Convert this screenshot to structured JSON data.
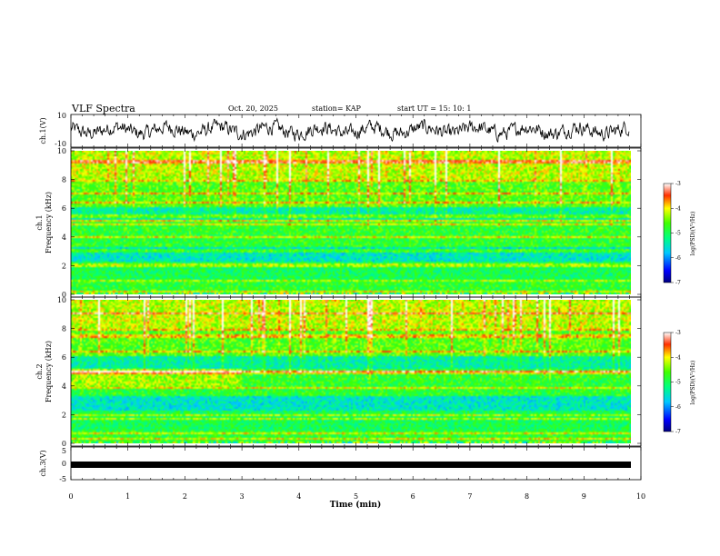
{
  "header": {
    "title": "VLF Spectra",
    "date": "Oct. 20, 2025",
    "station": "station= KAP",
    "start": "start  UT  =   15: 10: 1"
  },
  "chart_data": [
    {
      "type": "line",
      "name": "ch1-waveform",
      "ylabel": "ch.1(V)",
      "ylim": [
        -10,
        10
      ],
      "yticks": [
        "10",
        "-10"
      ],
      "xlim": [
        0,
        9.8
      ],
      "description_values": "noisy waveform oscillating roughly between -6 and 8 V around 0"
    },
    {
      "type": "heatmap",
      "name": "ch1-spectrogram",
      "ylabel_top": "ch.1",
      "ylabel": "Frequency  (kHz)",
      "ylim": [
        0,
        10
      ],
      "yticks": [
        "0",
        "2",
        "4",
        "6",
        "8",
        "10"
      ],
      "xlim": [
        0,
        9.8
      ],
      "lines_khz": [
        0.3,
        1.0,
        2.0,
        2.1,
        3.1,
        4.0,
        4.9,
        5.2,
        5.5,
        6.5,
        7.1,
        8.0,
        9.3
      ],
      "colorbar": {
        "label": "log(PSD)(V²/Hz)",
        "range": [
          -7,
          -3
        ],
        "ticks": [
          "-3",
          "-4",
          "-5",
          "-6",
          "-7"
        ]
      }
    },
    {
      "type": "heatmap",
      "name": "ch2-spectrogram",
      "ylabel_top": "ch.2",
      "ylabel": "Frequency  (kHz)",
      "ylim": [
        0,
        10
      ],
      "yticks": [
        "0",
        "2",
        "4",
        "6",
        "8",
        "10"
      ],
      "xlim": [
        0,
        9.8
      ],
      "step_time_min": 3.0,
      "lines_khz": [
        0.4,
        0.8,
        1.8,
        2.0,
        3.9,
        5.0,
        5.1,
        6.4,
        7.5,
        7.6,
        8.0,
        9.1
      ],
      "colorbar": {
        "label": "log(PSD)(V²/Hz)",
        "range": [
          -7,
          -3
        ],
        "ticks": [
          "-3",
          "-4",
          "-5",
          "-6",
          "-7"
        ]
      }
    },
    {
      "type": "line",
      "name": "ch3-waveform",
      "ylabel": "ch.3(V)",
      "ylim": [
        -5,
        5
      ],
      "yticks": [
        "5",
        "0",
        "-5"
      ],
      "xlim": [
        0,
        9.8
      ],
      "description_values": "nearly constant band around -1 V"
    }
  ],
  "xaxis": {
    "label": "Time  (min)",
    "range": [
      0,
      10
    ],
    "ticks": [
      "0",
      "1",
      "2",
      "3",
      "4",
      "5",
      "6",
      "7",
      "8",
      "9",
      "10"
    ]
  }
}
